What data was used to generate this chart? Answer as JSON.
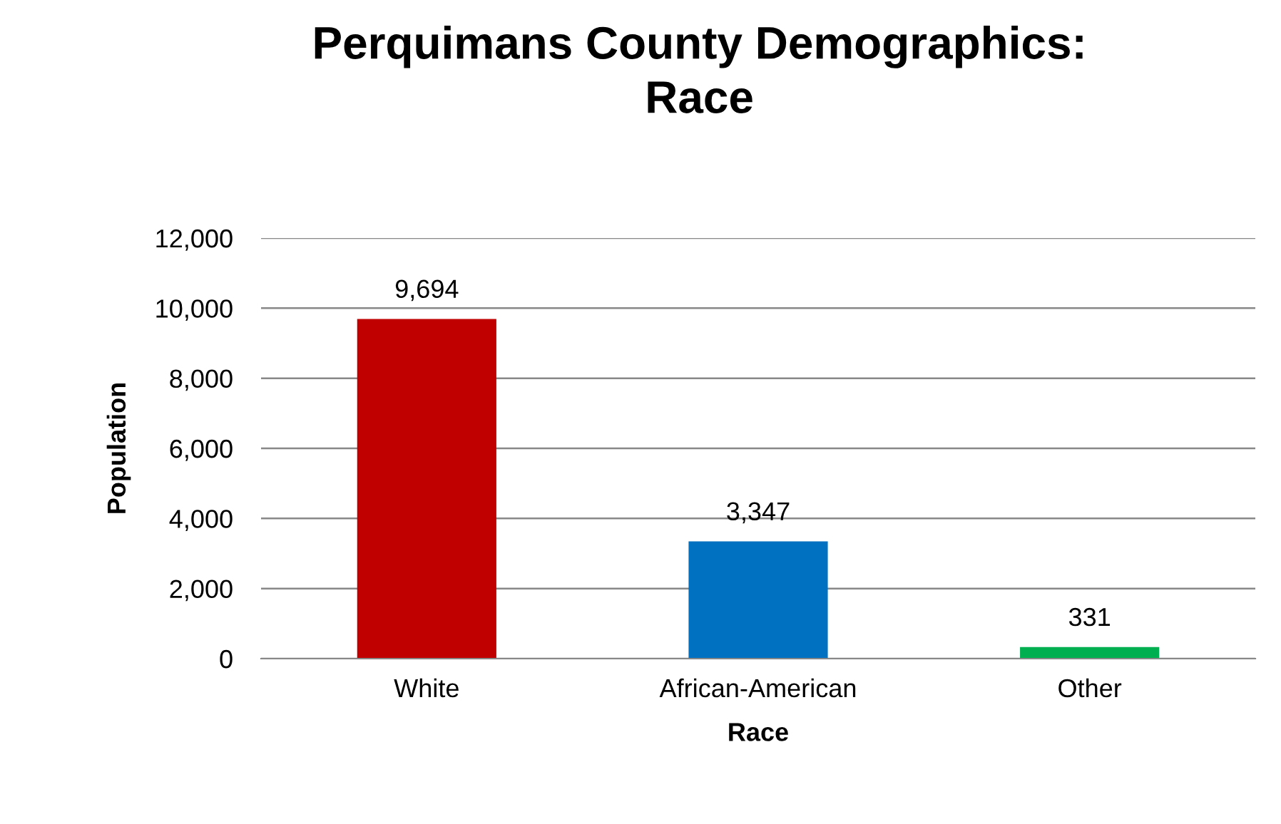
{
  "chart_data": {
    "type": "bar",
    "title": "Perquimans County Demographics:\nRace",
    "xlabel": "Race",
    "ylabel": "Population",
    "categories": [
      "White",
      "African-American",
      "Other"
    ],
    "values": [
      9694,
      3347,
      331
    ],
    "colors": [
      "#c00000",
      "#0070c0",
      "#00b050"
    ],
    "value_labels": [
      "9,694",
      "3,347",
      "331"
    ],
    "ylim": [
      0,
      12000
    ],
    "yticks": [
      {
        "value": 0,
        "label": "0"
      },
      {
        "value": 2000,
        "label": "2,000"
      },
      {
        "value": 4000,
        "label": "4,000"
      },
      {
        "value": 6000,
        "label": "6,000"
      },
      {
        "value": 8000,
        "label": "8,000"
      },
      {
        "value": 10000,
        "label": "10,000"
      },
      {
        "value": 12000,
        "label": "12,000"
      }
    ],
    "grid": "y",
    "legend": false
  }
}
